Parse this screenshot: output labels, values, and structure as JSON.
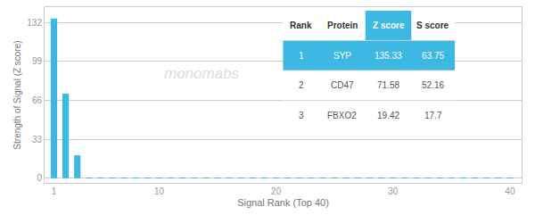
{
  "chart_data": {
    "type": "bar",
    "x": [
      1,
      2,
      3,
      4,
      5,
      6,
      7,
      8,
      9,
      10,
      11,
      12,
      13,
      14,
      15,
      16,
      17,
      18,
      19,
      20,
      21,
      22,
      23,
      24,
      25,
      26,
      27,
      28,
      29,
      30,
      31,
      32,
      33,
      34,
      35,
      36,
      37,
      38,
      39,
      40
    ],
    "values": [
      135.33,
      71.58,
      19.42,
      0.5,
      0.4,
      0.35,
      0.3,
      0.28,
      0.25,
      0.22,
      0.2,
      0.18,
      0.17,
      0.16,
      0.15,
      0.14,
      0.13,
      0.12,
      0.11,
      0.1,
      0.09,
      0.09,
      0.08,
      0.08,
      0.07,
      0.07,
      0.06,
      0.06,
      0.05,
      0.05,
      0.05,
      0.04,
      0.04,
      0.04,
      0.03,
      0.03,
      0.03,
      0.02,
      0.02,
      0.02
    ],
    "color": "#3db8e2",
    "xlabel": "Signal Rank (Top 40)",
    "ylabel": "Strength of Signal (Z score)",
    "xlim": [
      0.2,
      41
    ],
    "xticks": [
      1,
      10,
      20,
      30,
      40
    ],
    "ylim": [
      -4,
      145
    ],
    "yticks": [
      0,
      33,
      66,
      99,
      132
    ],
    "grid": true,
    "annotations": [
      "monomabs"
    ],
    "table": {
      "headers": [
        "Rank",
        "Protein",
        "Z score",
        "S score"
      ],
      "rows": [
        [
          "1",
          "SYP",
          "135.33",
          "63.75"
        ],
        [
          "2",
          "CD47",
          "71.58",
          "52.16"
        ],
        [
          "3",
          "FBXO2",
          "19.42",
          "17.7"
        ]
      ]
    }
  }
}
